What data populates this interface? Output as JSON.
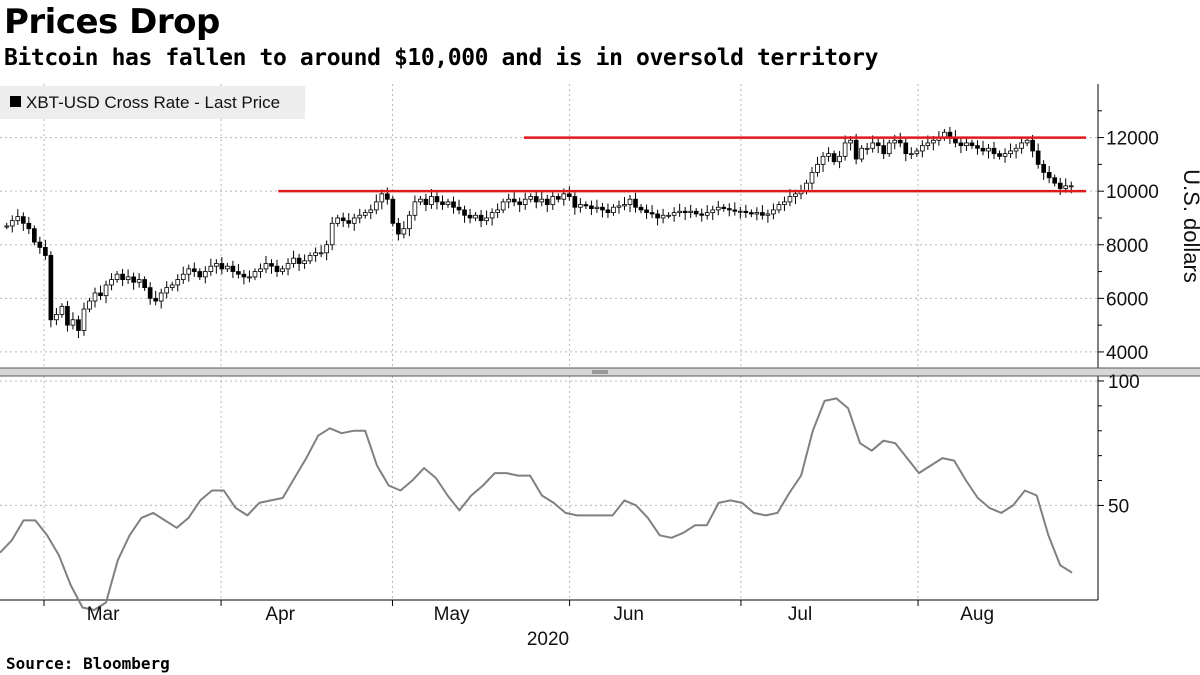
{
  "header": {
    "title": "Prices Drop",
    "subtitle": "Bitcoin has fallen to around $10,000 and is in oversold territory"
  },
  "footer": {
    "source": "Source: Bloomberg"
  },
  "colors": {
    "candle": "#000000",
    "resistance_line": "#e0191c",
    "rsi_line": "#808080",
    "grid": "#b8b8b8"
  },
  "chart_data": [
    {
      "type": "candlestick",
      "legend": [
        "XBT-USD Cross Rate - Last Price"
      ],
      "legend_placement": "top-left",
      "ylabel": "U.S. dollars",
      "ylim": [
        3400,
        14000
      ],
      "yticks": [
        4000,
        6000,
        8000,
        10000,
        12000
      ],
      "ytick_labels": [
        "4000",
        "6000",
        "8000",
        "10000",
        "12000"
      ],
      "grid": true,
      "x_start": "2020-02-23",
      "x_end": "2020-08-29",
      "close": [
        8700,
        8900,
        9050,
        8800,
        8600,
        8100,
        7900,
        7600,
        5200,
        5400,
        5700,
        5000,
        5200,
        4800,
        5600,
        5900,
        6200,
        6100,
        6500,
        6700,
        6900,
        6700,
        6800,
        6600,
        6700,
        6400,
        6000,
        5900,
        6200,
        6400,
        6500,
        6700,
        6900,
        7100,
        7000,
        6800,
        7000,
        7200,
        7300,
        7100,
        7200,
        7000,
        6900,
        6800,
        6800,
        7000,
        7100,
        7300,
        7200,
        7000,
        7100,
        7300,
        7500,
        7300,
        7400,
        7600,
        7700,
        7700,
        8000,
        8800,
        9000,
        8900,
        8800,
        9000,
        9100,
        9200,
        9300,
        9600,
        9900,
        9700,
        8800,
        8400,
        8600,
        9100,
        9600,
        9700,
        9500,
        9800,
        9600,
        9500,
        9600,
        9400,
        9300,
        9100,
        9000,
        9100,
        8900,
        9000,
        9200,
        9300,
        9600,
        9700,
        9600,
        9500,
        9700,
        9800,
        9600,
        9700,
        9500,
        9800,
        9700,
        9900,
        9800,
        9400,
        9500,
        9450,
        9350,
        9400,
        9300,
        9200,
        9400,
        9450,
        9500,
        9700,
        9400,
        9300,
        9200,
        9150,
        9000,
        9100,
        9100,
        9200,
        9250,
        9200,
        9250,
        9150,
        9100,
        9200,
        9300,
        9400,
        9350,
        9300,
        9250,
        9250,
        9200,
        9150,
        9200,
        9100,
        9150,
        9300,
        9500,
        9600,
        9800,
        9900,
        10000,
        10300,
        10700,
        11000,
        11300,
        11400,
        11100,
        11300,
        11800,
        11900,
        11200,
        11600,
        11600,
        11800,
        11700,
        11400,
        11800,
        11900,
        11800,
        11400,
        11400,
        11500,
        11700,
        11800,
        11900,
        12000,
        12200,
        12000,
        11800,
        11700,
        11800,
        11700,
        11600,
        11500,
        11600,
        11400,
        11300,
        11400,
        11500,
        11600,
        11800,
        11900,
        11500,
        11000,
        10700,
        10500,
        10300,
        10100,
        10200,
        10200
      ],
      "resistance_levels": [
        {
          "value": 12000,
          "from": "2020-05-24",
          "to": "2020-08-29"
        },
        {
          "value": 10000,
          "from": "2020-04-11",
          "to": "2020-08-29"
        }
      ]
    },
    {
      "type": "line",
      "series": [
        {
          "name": "",
          "values": [
            31,
            36,
            44,
            44,
            38,
            30,
            18,
            9,
            8,
            11,
            28,
            38,
            45,
            47,
            44,
            41,
            45,
            52,
            56,
            56,
            49,
            46,
            51,
            52,
            53,
            61,
            69,
            78,
            81,
            79,
            80,
            80,
            66,
            58,
            56,
            60,
            65,
            61,
            54,
            48,
            54,
            58,
            63,
            63,
            62,
            62,
            54,
            51,
            47,
            46,
            46,
            46,
            46,
            52,
            50,
            45,
            38,
            37,
            39,
            42,
            42,
            51,
            52,
            51,
            47,
            46,
            47,
            55,
            62,
            80,
            92,
            93,
            89,
            75,
            72,
            76,
            75,
            69,
            63,
            66,
            69,
            68,
            60,
            53,
            49,
            47,
            50,
            56,
            54,
            38,
            26,
            23
          ]
        }
      ],
      "x_start": "2020-02-23",
      "x_end": "2020-08-29",
      "ylim": [
        12,
        102
      ],
      "yticks": [
        50,
        100
      ],
      "ytick_labels": [
        "50",
        "100"
      ],
      "xtick_labels": [
        "Mar",
        "Apr",
        "May",
        "Jun",
        "Jul",
        "Aug"
      ],
      "xtick_dates": [
        "2020-03-01",
        "2020-04-01",
        "2020-05-01",
        "2020-06-01",
        "2020-07-01",
        "2020-08-01"
      ],
      "year_label": "2020",
      "grid": true
    }
  ]
}
